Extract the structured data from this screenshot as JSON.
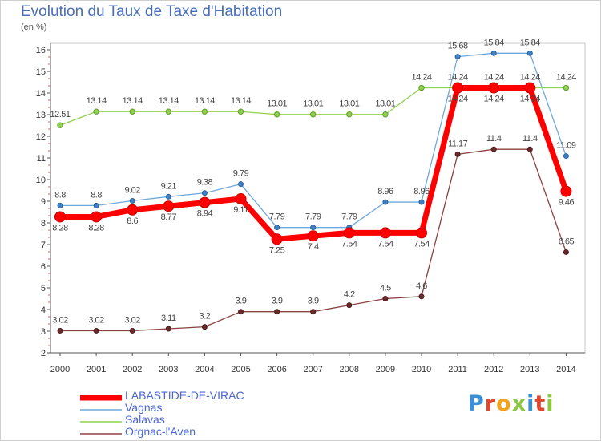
{
  "title": "Evolution du Taux de Taxe d'Habitation",
  "subtitle": "(en %)",
  "brand": {
    "text": "Proxiti",
    "colors": [
      "#3a8fd6",
      "#e2472e",
      "#f2a21b",
      "#8dc63f",
      "#3a8fd6",
      "#e2472e",
      "#8dc63f"
    ]
  },
  "chart_data": {
    "type": "line",
    "title": "Evolution du Taux de Taxe d'Habitation",
    "ylabel": "(en %)",
    "xlabel": "",
    "ylim": [
      2,
      16
    ],
    "yticks": [
      "2",
      "3",
      "4",
      "5",
      "6",
      "7",
      "8",
      "9",
      "10",
      "11",
      "12",
      "13",
      "14",
      "15",
      "16"
    ],
    "grid": false,
    "x": [
      "2000",
      "2001",
      "2002",
      "2003",
      "2004",
      "2005",
      "2006",
      "2007",
      "2008",
      "2009",
      "2010",
      "2011",
      "2012",
      "2013",
      "2014"
    ],
    "series": [
      {
        "name": "LABASTIDE-DE-VIRAC",
        "color": "#ff0000",
        "values": [
          8.28,
          8.28,
          8.6,
          8.77,
          8.94,
          9.11,
          7.25,
          7.4,
          7.54,
          7.54,
          7.54,
          14.24,
          14.24,
          14.24,
          9.46
        ],
        "labels": [
          "8.28",
          "8.28",
          "8.6",
          "8.77",
          "8.94",
          "9.11",
          "7.25",
          "7.4",
          "7.54",
          "7.54",
          "7.54",
          "14.24",
          "14.24",
          "14.24",
          "9.46"
        ]
      },
      {
        "name": "Vagnas",
        "color": "#6fa8dc",
        "values": [
          8.8,
          8.8,
          9.02,
          9.21,
          9.38,
          9.79,
          7.79,
          7.79,
          7.79,
          8.96,
          8.96,
          15.68,
          15.84,
          15.84,
          11.09
        ],
        "labels": [
          "8.8",
          "8.8",
          "9.02",
          "9.21",
          "9.38",
          "9.79",
          "7.79",
          "7.79",
          "7.79",
          "8.96",
          "8.96",
          "15.68",
          "15.84",
          "15.84",
          "11.09"
        ]
      },
      {
        "name": "Salavas",
        "color": "#92d050",
        "values": [
          12.51,
          13.14,
          13.14,
          13.14,
          13.14,
          13.14,
          13.01,
          13.01,
          13.01,
          13.01,
          14.24,
          14.24,
          14.24,
          14.24,
          14.24
        ],
        "labels": [
          "12.51",
          "13.14",
          "13.14",
          "13.14",
          "13.14",
          "13.14",
          "13.01",
          "13.01",
          "13.01",
          "13.01",
          "14.24",
          "14.24",
          "14.24",
          "14.24",
          "14.24"
        ]
      },
      {
        "name": "Orgnac-l'Aven",
        "color": "#8b4040",
        "values": [
          3.02,
          3.02,
          3.02,
          3.11,
          3.2,
          3.9,
          3.9,
          3.9,
          4.2,
          4.5,
          4.6,
          11.17,
          11.4,
          11.4,
          6.65
        ],
        "labels": [
          "3.02",
          "3.02",
          "3.02",
          "3.11",
          "3.2",
          "3.9",
          "3.9",
          "3.9",
          "4.2",
          "4.5",
          "4.6",
          "11.17",
          "11.4",
          "11.4",
          "6.65"
        ]
      }
    ]
  }
}
